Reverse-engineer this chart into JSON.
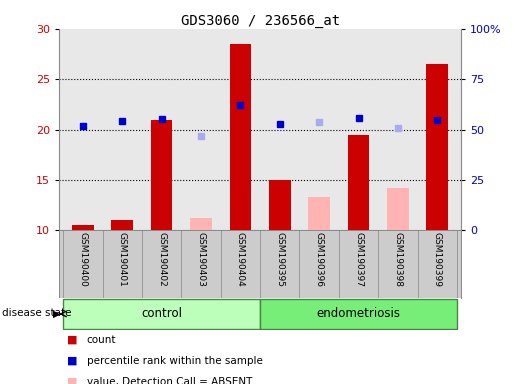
{
  "title": "GDS3060 / 236566_at",
  "samples": [
    "GSM190400",
    "GSM190401",
    "GSM190402",
    "GSM190403",
    "GSM190404",
    "GSM190395",
    "GSM190396",
    "GSM190397",
    "GSM190398",
    "GSM190399"
  ],
  "groups": [
    {
      "label": "control",
      "start": 0,
      "end": 5
    },
    {
      "label": "endometriosis",
      "start": 5,
      "end": 10
    }
  ],
  "count_values": [
    10.5,
    11.0,
    21.0,
    null,
    28.5,
    15.0,
    null,
    19.5,
    null,
    26.5
  ],
  "percentile_rank_values": [
    20.4,
    20.9,
    21.1,
    null,
    22.4,
    20.6,
    null,
    21.2,
    null,
    21.0
  ],
  "absent_value_values": [
    null,
    null,
    null,
    11.2,
    null,
    null,
    13.3,
    null,
    14.2,
    null
  ],
  "absent_rank_values": [
    null,
    null,
    null,
    19.4,
    null,
    null,
    20.8,
    null,
    20.2,
    null
  ],
  "ylim_left": [
    10,
    30
  ],
  "ylim_right": [
    0,
    100
  ],
  "yticks_left": [
    10,
    15,
    20,
    25,
    30
  ],
  "yticks_right": [
    0,
    25,
    50,
    75,
    100
  ],
  "ytick_labels_right": [
    "0",
    "25",
    "50",
    "75",
    "100%"
  ],
  "bar_width": 0.55,
  "bar_color_count": "#cc0000",
  "bar_color_absent": "#ffb3b3",
  "dot_color_rank": "#0000cc",
  "dot_color_absent_rank": "#aaaaee",
  "group_color_control": "#bbffbb",
  "group_color_endo": "#77ee77",
  "group_border_color": "#448844",
  "plot_bg_color": "#e8e8e8",
  "label_bg_color": "#cccccc",
  "background_color": "#ffffff",
  "label_color_left": "#cc0000",
  "label_color_right": "#0000cc"
}
